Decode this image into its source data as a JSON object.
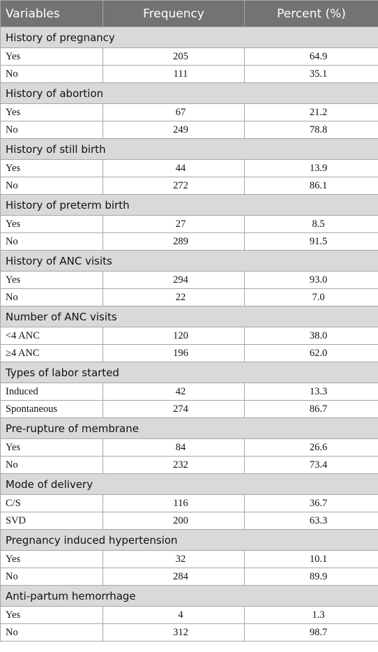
{
  "header": {
    "col1": "Variables",
    "col2": "Frequency",
    "col3": "Percent (%)"
  },
  "sections": [
    {
      "title": "History of pregnancy",
      "rows": [
        {
          "label": "Yes",
          "frequency": "205",
          "percent": "64.9"
        },
        {
          "label": "No",
          "frequency": "111",
          "percent": "35.1"
        }
      ]
    },
    {
      "title": "History of abortion",
      "rows": [
        {
          "label": "Yes",
          "frequency": "67",
          "percent": "21.2"
        },
        {
          "label": "No",
          "frequency": "249",
          "percent": "78.8"
        }
      ]
    },
    {
      "title": "History of still birth",
      "rows": [
        {
          "label": "Yes",
          "frequency": "44",
          "percent": "13.9"
        },
        {
          "label": "No",
          "frequency": "272",
          "percent": "86.1"
        }
      ]
    },
    {
      "title": "History of preterm birth",
      "rows": [
        {
          "label": "Yes",
          "frequency": "27",
          "percent": "8.5"
        },
        {
          "label": "No",
          "frequency": "289",
          "percent": "91.5"
        }
      ]
    },
    {
      "title": "History of ANC visits",
      "rows": [
        {
          "label": "Yes",
          "frequency": "294",
          "percent": "93.0"
        },
        {
          "label": "No",
          "frequency": "22",
          "percent": "7.0"
        }
      ]
    },
    {
      "title": "Number of ANC visits",
      "rows": [
        {
          "label": "<4 ANC",
          "frequency": "120",
          "percent": "38.0"
        },
        {
          "label": "≥4 ANC",
          "frequency": "196",
          "percent": "62.0"
        }
      ]
    },
    {
      "title": "Types of labor started",
      "rows": [
        {
          "label": "Induced",
          "frequency": "42",
          "percent": "13.3"
        },
        {
          "label": "Spontaneous",
          "frequency": "274",
          "percent": "86.7"
        }
      ]
    },
    {
      "title": "Pre-rupture of membrane",
      "rows": [
        {
          "label": "Yes",
          "frequency": "84",
          "percent": "26.6"
        },
        {
          "label": "No",
          "frequency": "232",
          "percent": "73.4"
        }
      ]
    },
    {
      "title": "Mode of delivery",
      "rows": [
        {
          "label": "C/S",
          "frequency": "116",
          "percent": "36.7"
        },
        {
          "label": "SVD",
          "frequency": "200",
          "percent": "63.3"
        }
      ]
    },
    {
      "title": "Pregnancy induced hypertension",
      "rows": [
        {
          "label": "Yes",
          "frequency": "32",
          "percent": "10.1"
        },
        {
          "label": "No",
          "frequency": "284",
          "percent": "89.9"
        }
      ]
    },
    {
      "title": "Anti-partum hemorrhage",
      "rows": [
        {
          "label": "Yes",
          "frequency": "4",
          "percent": "1.3"
        },
        {
          "label": "No",
          "frequency": "312",
          "percent": "98.7"
        }
      ]
    }
  ],
  "colors": {
    "header_bg": "#737373",
    "header_text": "#ffffff",
    "section_bg": "#d9d9d9",
    "border": "#a6a6a6"
  }
}
